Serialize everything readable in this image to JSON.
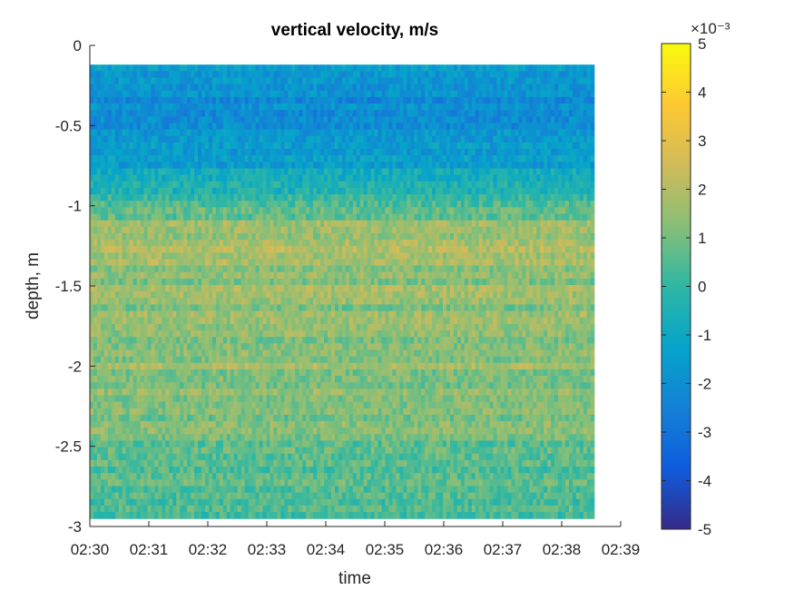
{
  "chart_data": {
    "type": "heatmap",
    "title": "vertical velocity, m/s",
    "xlabel": "time",
    "ylabel": "depth, m",
    "x_ticks": [
      "02:30",
      "02:31",
      "02:32",
      "02:33",
      "02:34",
      "02:35",
      "02:36",
      "02:37",
      "02:38",
      "02:39"
    ],
    "xlim": [
      "02:30",
      "02:39"
    ],
    "data_x_range": [
      "02:30",
      "02:38:33"
    ],
    "y_ticks": [
      "0",
      "-0.5",
      "-1",
      "-1.5",
      "-2",
      "-2.5",
      "-3"
    ],
    "ylim": [
      -3,
      0
    ],
    "data_y_range": [
      -2.95,
      -0.12
    ],
    "colorbar": {
      "ticks": [
        "5",
        "4",
        "3",
        "2",
        "1",
        "0",
        "-1",
        "-2",
        "-3",
        "-4",
        "-5"
      ],
      "exponent_label": "×10⁻³",
      "range": [
        -0.005,
        0.005
      ],
      "colormap": "parula",
      "colormap_stops": [
        "#352a87",
        "#0f5cdd",
        "#1481d6",
        "#06a4ca",
        "#2eb7a4",
        "#87bf77",
        "#d1bb59",
        "#fec832",
        "#f9fb0e"
      ]
    },
    "depth_profile": {
      "depth": [
        -0.12,
        -0.3,
        -0.5,
        -0.7,
        -0.9,
        -1.0,
        -1.1,
        -1.25,
        -1.4,
        -1.6,
        -1.8,
        -2.0,
        -2.2,
        -2.4,
        -2.6,
        -2.8,
        -2.9,
        -2.95
      ],
      "mean_velocity_1e-3": [
        -1.5,
        -2.0,
        -2.2,
        -1.6,
        -0.6,
        0.3,
        1.2,
        2.0,
        1.6,
        1.3,
        1.4,
        1.5,
        1.2,
        1.0,
        0.8,
        0.7,
        0.5,
        -0.3
      ]
    }
  }
}
